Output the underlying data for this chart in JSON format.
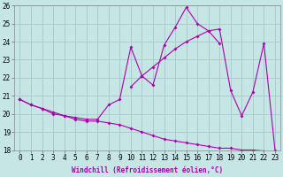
{
  "xlabel": "Windchill (Refroidissement éolien,°C)",
  "background_color": "#c6e6e6",
  "grid_color": "#a8c8c8",
  "line_color": "#aa00aa",
  "x_values": [
    0,
    1,
    2,
    3,
    4,
    5,
    6,
    7,
    8,
    9,
    10,
    11,
    12,
    13,
    14,
    15,
    16,
    17,
    18,
    19,
    20,
    21,
    22,
    23
  ],
  "line_jagged": [
    20.8,
    20.5,
    20.3,
    20.0,
    19.9,
    19.8,
    19.7,
    19.7,
    20.5,
    20.8,
    23.7,
    22.1,
    21.6,
    23.8,
    24.8,
    25.9,
    25.0,
    24.6,
    24.7,
    21.3,
    19.9,
    21.2,
    23.9,
    18.0
  ],
  "line_diag_up": [
    20.8,
    null,
    null,
    null,
    null,
    null,
    null,
    null,
    null,
    null,
    21.5,
    22.1,
    22.6,
    23.1,
    23.6,
    24.0,
    24.3,
    24.6,
    23.9,
    null,
    null,
    null,
    null,
    null
  ],
  "line_lower": [
    20.8,
    20.5,
    20.3,
    20.1,
    19.9,
    19.7,
    19.6,
    19.6,
    19.5,
    19.4,
    19.2,
    19.0,
    18.8,
    18.6,
    18.5,
    18.4,
    18.3,
    18.2,
    18.1,
    18.1,
    18.0,
    18.0,
    17.95,
    17.9
  ],
  "ylim": [
    18,
    26
  ],
  "xlim": [
    -0.5,
    23.5
  ],
  "yticks": [
    18,
    19,
    20,
    21,
    22,
    23,
    24,
    25,
    26
  ],
  "xticks": [
    0,
    1,
    2,
    3,
    4,
    5,
    6,
    7,
    8,
    9,
    10,
    11,
    12,
    13,
    14,
    15,
    16,
    17,
    18,
    19,
    20,
    21,
    22,
    23
  ],
  "xlabel_fontsize": 5.5,
  "tick_fontsize": 5.5
}
